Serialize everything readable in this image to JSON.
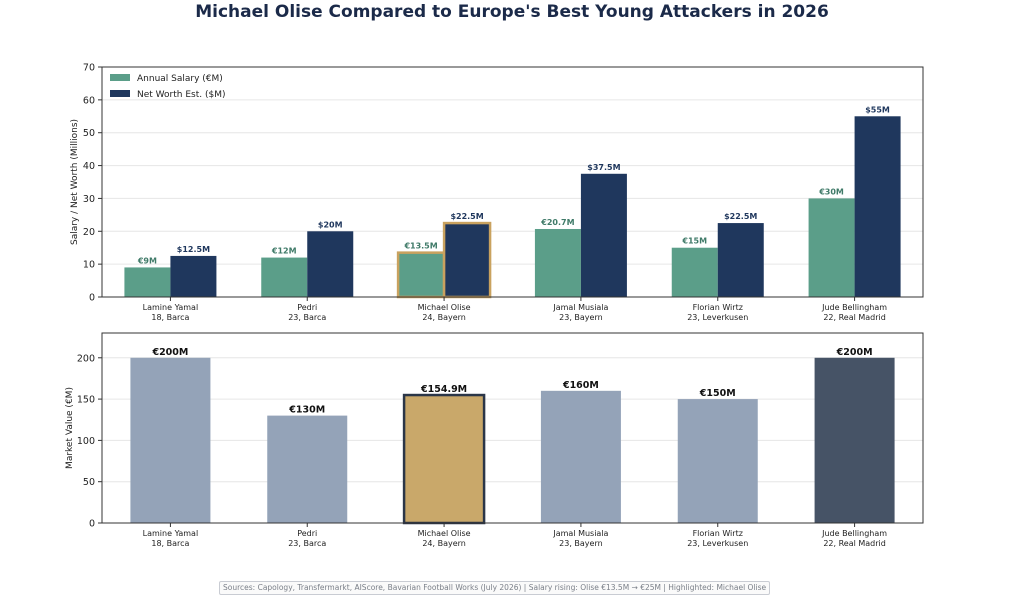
{
  "title": "Michael Olise Compared to Europe's Best Young Attackers in 2026",
  "footer": "Sources: Capology, Transfermarkt, AIScore, Bavarian Football Works (July 2026) | Salary rising: Olise €13.5M → €25M | Highlighted: Michael Olise",
  "colors": {
    "salary": "#5b9e89",
    "net_worth": "#1f375d",
    "highlight_edge": "#c9a25f",
    "market_default": "#94a3b8",
    "market_highlight": "#c9a86a",
    "market_top": "#465366",
    "title": "#1b2a49"
  },
  "chart_data": [
    {
      "type": "bar",
      "categories": [
        "Lamine Yamal\n18, Barca",
        "Pedri\n23, Barca",
        "Michael Olise\n24, Bayern",
        "Jamal Musiala\n23, Bayern",
        "Florian Wirtz\n23, Leverkusen",
        "Jude Bellingham\n22, Real Madrid"
      ],
      "series": [
        {
          "name": "Annual Salary (€M)",
          "values": [
            9,
            12,
            13.5,
            20.7,
            15,
            30
          ],
          "labels": [
            "€9M",
            "€12M",
            "€13.5M",
            "€20.7M",
            "€15M",
            "€30M"
          ]
        },
        {
          "name": "Net Worth Est. ($M)",
          "values": [
            12.5,
            20,
            22.5,
            37.5,
            22.5,
            55
          ],
          "labels": [
            "$12.5M",
            "$20M",
            "$22.5M",
            "$37.5M",
            "$22.5M",
            "$55M"
          ]
        }
      ],
      "ylabel": "Salary / Net Worth (Millions)",
      "xlabel": "",
      "ylim": [
        0,
        70
      ],
      "yticks": [
        0,
        10,
        20,
        30,
        40,
        50,
        60,
        70
      ],
      "grid": true,
      "legend": "top-left",
      "highlight_index": 2
    },
    {
      "type": "bar",
      "categories": [
        "Lamine Yamal\n18, Barca",
        "Pedri\n23, Barca",
        "Michael Olise\n24, Bayern",
        "Jamal Musiala\n23, Bayern",
        "Florian Wirtz\n23, Leverkusen",
        "Jude Bellingham\n22, Real Madrid"
      ],
      "values": [
        200,
        130,
        154.9,
        160,
        150,
        200
      ],
      "labels": [
        "€200M",
        "€130M",
        "€154.9M",
        "€160M",
        "€150M",
        "€200M"
      ],
      "ylabel": "Market Value (€M)",
      "xlabel": "",
      "ylim": [
        0,
        230
      ],
      "yticks": [
        0,
        50,
        100,
        150,
        200
      ],
      "grid": true,
      "highlight_index": 2,
      "top_index": 5
    }
  ]
}
